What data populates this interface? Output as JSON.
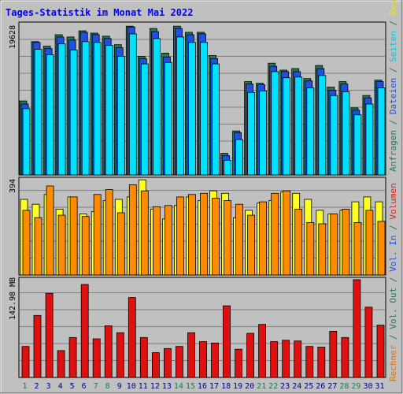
{
  "title": "Tages-Statistik im Monat Mai 2022",
  "axis_max_labels": {
    "top": "19628",
    "middle": "394",
    "bottom": "142.98 MB"
  },
  "legend_right_top": [
    {
      "text": "Anfragen",
      "color": "#1f7a5a"
    },
    {
      "text": " / ",
      "color": "#1f7a5a"
    },
    {
      "text": "Dateien",
      "color": "#2050e0"
    },
    {
      "text": " / ",
      "color": "#1f7a5a"
    },
    {
      "text": "Seiten",
      "color": "#00c8e8"
    },
    {
      "text": " / ",
      "color": "#1f7a5a"
    },
    {
      "text": "Besuche",
      "color": "#e8e800"
    }
  ],
  "legend_right_mid": [
    {
      "text": "Rechner",
      "color": "#e07000"
    },
    {
      "text": " / ",
      "color": "#1f7a5a"
    },
    {
      "text": "Vol. Out",
      "color": "#1f7a5a"
    },
    {
      "text": " / ",
      "color": "#1f7a5a"
    },
    {
      "text": "Vol. In",
      "color": "#2050e0"
    },
    {
      "text": " / ",
      "color": "#1f7a5a"
    },
    {
      "text": "Volumen",
      "color": "#e02020"
    }
  ],
  "colors": {
    "background": "#c0c0c0",
    "title": "#0000ff",
    "day_weekday": "#000080",
    "day_weekend": "#1f7a5a",
    "anfragen": "#1f7a5a",
    "dateien": "#2050e0",
    "seiten": "#00e0ff",
    "besuche": "#ffff20",
    "rechner": "#ff8c00",
    "volumen": "#e01010"
  },
  "chart_data": {
    "type": "bar",
    "title": "Tages-Statistik im Monat Mai 2022",
    "categories": [
      "1",
      "2",
      "3",
      "4",
      "5",
      "6",
      "7",
      "8",
      "9",
      "10",
      "11",
      "12",
      "13",
      "14",
      "15",
      "16",
      "17",
      "18",
      "19",
      "20",
      "21",
      "22",
      "23",
      "24",
      "25",
      "26",
      "27",
      "28",
      "29",
      "30",
      "31"
    ],
    "weekend_days": [
      "1",
      "7",
      "8",
      "14",
      "15",
      "21",
      "22",
      "28",
      "29"
    ],
    "panels": [
      {
        "name": "requests",
        "ymax_label": "19628",
        "ylim": [
          0,
          19628
        ],
        "series": [
          {
            "name": "Anfragen",
            "values": [
              9600,
              17300,
              16700,
              18200,
              17900,
              18700,
              18400,
              18000,
              16900,
              19300,
              15400,
              19000,
              15800,
              19300,
              18500,
              18500,
              15500,
              2800,
              5700,
              12100,
              11900,
              14500,
              13600,
              13800,
              12500,
              14200,
              11400,
              12100,
              8700,
              10300,
              12300
            ]
          },
          {
            "name": "Dateien",
            "values": [
              9200,
              17200,
              16400,
              17900,
              17500,
              18500,
              18200,
              17700,
              16500,
              19200,
              15100,
              18600,
              15300,
              19000,
              18200,
              18300,
              15100,
              2500,
              5500,
              11800,
              11700,
              14100,
              13400,
              13400,
              12200,
              13800,
              11000,
              11800,
              8400,
              10000,
              12100
            ]
          },
          {
            "name": "Seiten",
            "values": [
              8600,
              16300,
              15600,
              17000,
              16200,
              17300,
              17200,
              16800,
              15400,
              18300,
              14400,
              17700,
              14600,
              17900,
              17200,
              17200,
              14400,
              1900,
              4600,
              10700,
              10900,
              13400,
              12600,
              12700,
              11300,
              12900,
              10300,
              10800,
              7800,
              9200,
              11300
            ]
          }
        ]
      },
      {
        "name": "visits",
        "ymax_label": "394",
        "ylim": [
          0,
          394
        ],
        "series": [
          {
            "name": "Besuche",
            "values": [
              310,
              290,
              330,
              270,
              320,
              250,
              260,
              305,
              310,
              320,
              390,
              270,
              230,
              285,
              320,
              305,
              345,
              335,
              235,
              265,
              295,
              305,
              340,
              335,
              310,
              265,
              250,
              265,
              300,
              320,
              300
            ]
          },
          {
            "name": "Rechner",
            "values": [
              265,
              235,
              365,
              245,
              320,
              240,
              330,
              350,
              255,
              370,
              345,
              280,
              285,
              320,
              330,
              335,
              315,
              305,
              290,
              245,
              300,
              335,
              345,
              270,
              215,
              210,
              250,
              270,
              215,
              265,
              220
            ]
          }
        ]
      },
      {
        "name": "volume",
        "ymax_label": "142.98 MB",
        "ylim": [
          0,
          142.98
        ],
        "series": [
          {
            "name": "Volumen",
            "values": [
              45,
              90,
              122,
              39,
              58,
              135,
              56,
              75,
              65,
              116,
              58,
              36,
              42,
              45,
              65,
              52,
              50,
              104,
              41,
              64,
              77,
              52,
              54,
              53,
              45,
              44,
              67,
              58,
              142,
              102,
              76
            ]
          }
        ]
      }
    ]
  }
}
